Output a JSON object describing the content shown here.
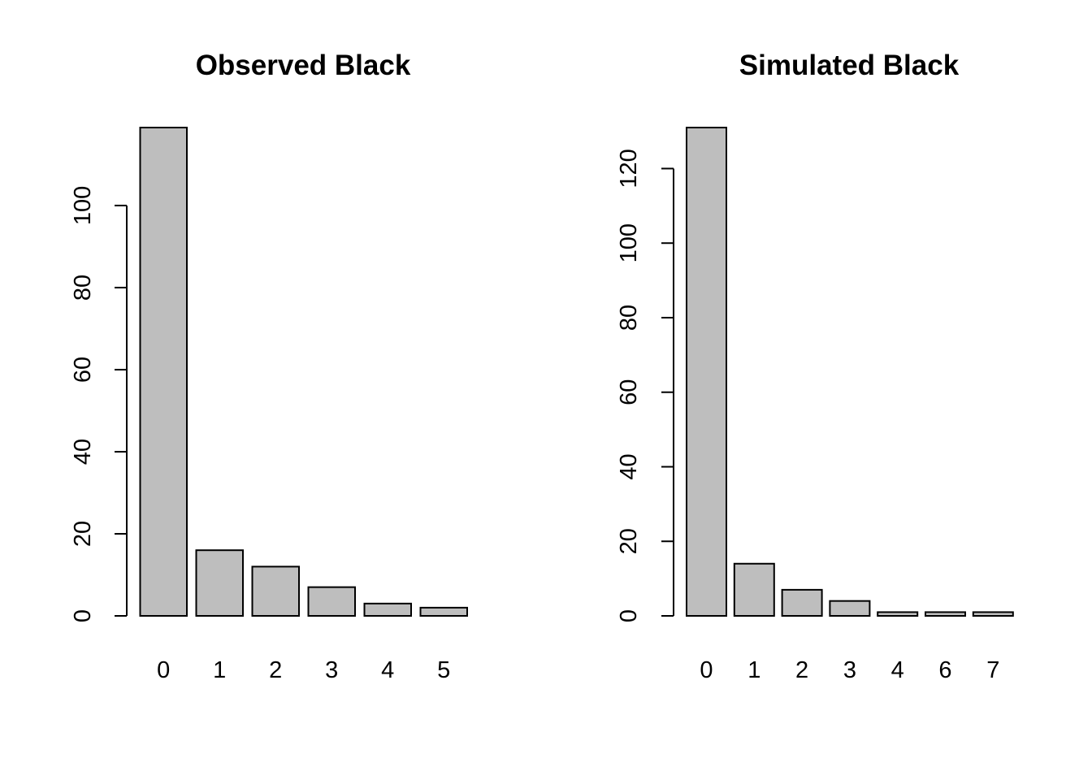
{
  "bar_color": "#bebebe",
  "chart_data": [
    {
      "type": "bar",
      "title": "Observed Black",
      "categories": [
        "0",
        "1",
        "2",
        "3",
        "4",
        "5"
      ],
      "values": [
        119,
        16,
        12,
        7,
        3,
        2
      ],
      "xlabel": "",
      "ylabel": "",
      "ylim": [
        0,
        119
      ],
      "yticks": [
        0,
        20,
        40,
        60,
        80,
        100
      ],
      "ytick_labels": [
        "0",
        "20",
        "40",
        "60",
        "80",
        "100"
      ],
      "grid": false,
      "legend": "none"
    },
    {
      "type": "bar",
      "title": "Simulated Black",
      "categories": [
        "0",
        "1",
        "2",
        "3",
        "4",
        "6",
        "7"
      ],
      "values": [
        131,
        14,
        7,
        4,
        1,
        1,
        1
      ],
      "xlabel": "",
      "ylabel": "",
      "ylim": [
        0,
        131
      ],
      "yticks": [
        0,
        20,
        40,
        60,
        80,
        100,
        120
      ],
      "ytick_labels": [
        "0",
        "20",
        "40",
        "60",
        "80",
        "100",
        "120"
      ],
      "grid": false,
      "legend": "none"
    }
  ]
}
